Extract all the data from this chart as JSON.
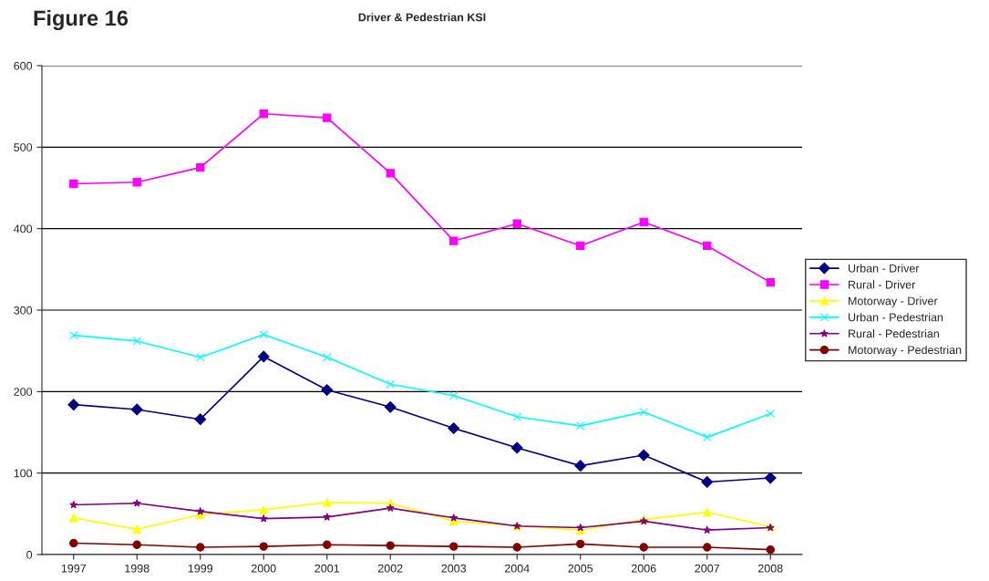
{
  "chart_data": {
    "type": "line",
    "title": "Driver & Pedestrian KSI",
    "annotations": [
      "Figure 16"
    ],
    "categories": [
      "1997",
      "1998",
      "1999",
      "2000",
      "2001",
      "2002",
      "2003",
      "2004",
      "2005",
      "2006",
      "2007",
      "2008"
    ],
    "series": [
      {
        "name": "Urban - Driver",
        "color": "#000080",
        "marker": "diamond",
        "values": [
          184,
          178,
          166,
          243,
          202,
          181,
          155,
          131,
          109,
          122,
          89,
          94
        ]
      },
      {
        "name": "Rural - Driver",
        "color": "#ff00ff",
        "marker": "square",
        "values": [
          455,
          457,
          475,
          541,
          536,
          468,
          385,
          406,
          379,
          408,
          379,
          334
        ]
      },
      {
        "name": "Motorway - Driver",
        "color": "#ffff00",
        "marker": "triangle",
        "values": [
          45,
          31,
          49,
          55,
          64,
          63,
          41,
          35,
          30,
          43,
          52,
          34
        ]
      },
      {
        "name": "Urban - Pedestrian",
        "color": "#00ffff",
        "marker": "cross",
        "values": [
          269,
          262,
          242,
          270,
          242,
          209,
          195,
          169,
          158,
          175,
          144,
          173
        ]
      },
      {
        "name": "Rural - Pedestrian",
        "color": "#800080",
        "marker": "star",
        "values": [
          61,
          63,
          53,
          44,
          46,
          57,
          45,
          35,
          33,
          41,
          30,
          33
        ]
      },
      {
        "name": "Motorway - Pedestrian",
        "color": "#800000",
        "marker": "circle",
        "values": [
          14,
          12,
          9,
          10,
          12,
          11,
          10,
          9,
          13,
          9,
          9,
          6
        ]
      }
    ],
    "ylim": [
      0,
      600
    ],
    "yticks": [
      0,
      100,
      200,
      300,
      400,
      500,
      600
    ],
    "grid": "y",
    "legend": "right"
  }
}
